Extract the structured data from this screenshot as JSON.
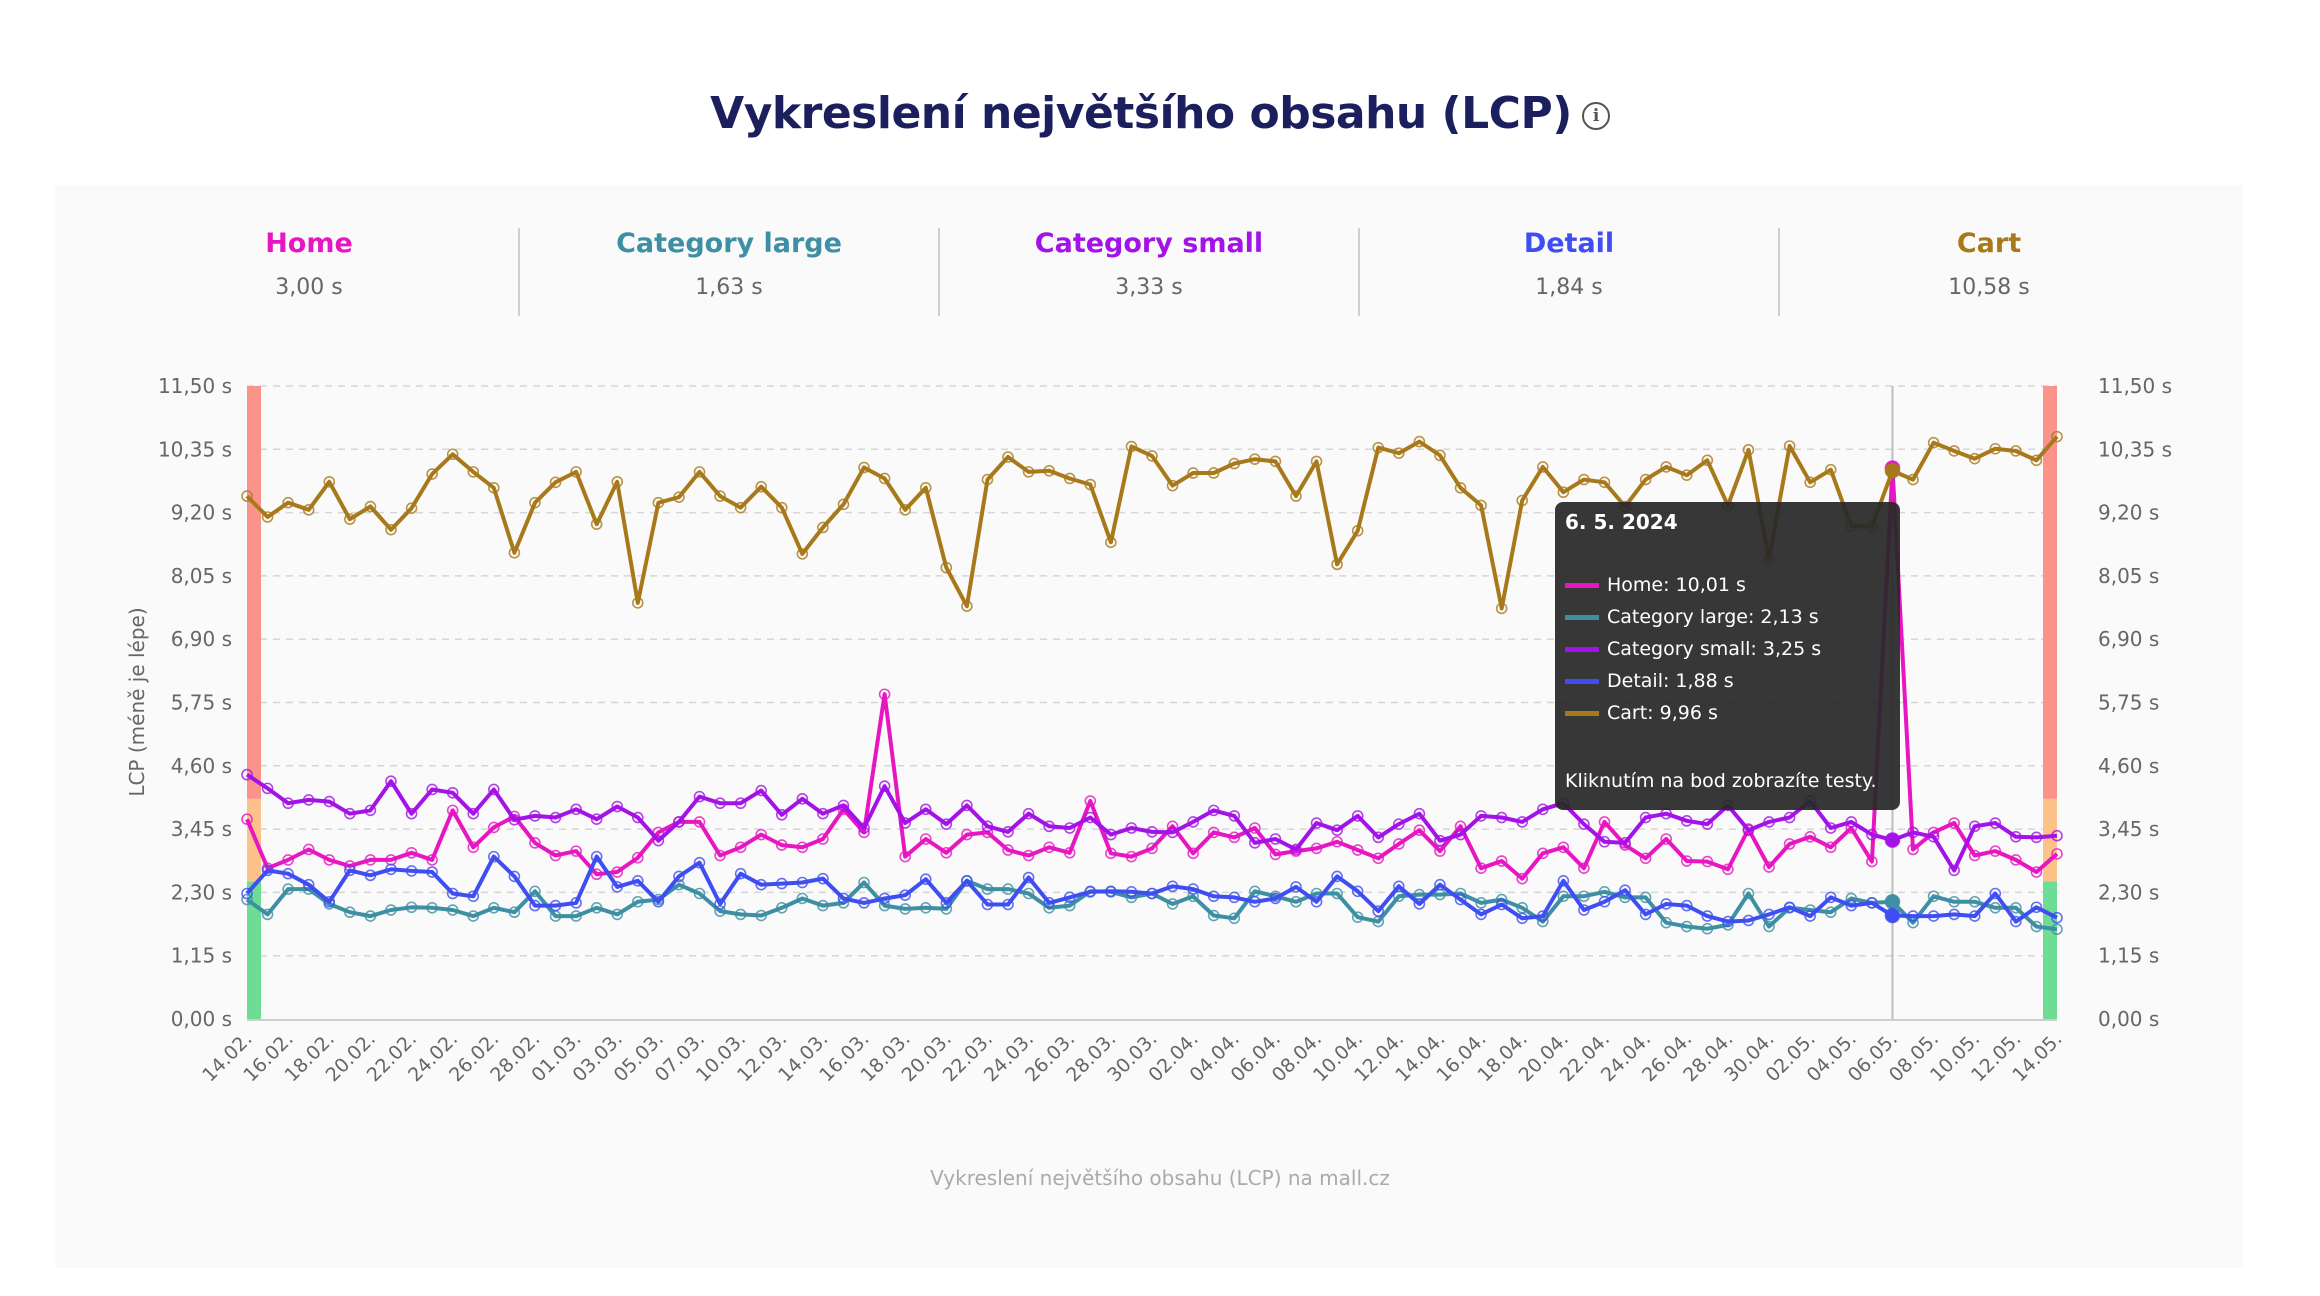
{
  "title": "Vykreslení největšího obsahu (LCP)",
  "title_icon": "info-circle-icon",
  "summary": [
    {
      "name": "Home",
      "value": "3,00 s",
      "color": "#e617c2"
    },
    {
      "name": "Category large",
      "value": "1,63 s",
      "color": "#3d8fa3"
    },
    {
      "name": "Category small",
      "value": "3,33 s",
      "color": "#a312e6"
    },
    {
      "name": "Detail",
      "value": "1,84 s",
      "color": "#3f4ef2"
    },
    {
      "name": "Cart",
      "value": "10,58 s",
      "color": "#a8791b"
    }
  ],
  "tooltip": {
    "date": "6. 5. 2024",
    "rows": [
      "Home: 10,01 s",
      "Category large: 2,13 s",
      "Category small: 3,25 s",
      "Detail: 1,88 s",
      "Cart: 9,96 s"
    ],
    "hint": "Kliknutím na bod zobrazíte testy."
  },
  "footer": "Vykreslení největšího obsahu (LCP) na mall.cz",
  "chart_data": {
    "type": "line",
    "title": "Vykreslení největšího obsahu (LCP)",
    "ylabel": "LCP (méně je lépe)",
    "xlabel": "",
    "ylim": [
      0,
      11.5
    ],
    "y_ticks": [
      "0,00 s",
      "1,15 s",
      "2,30 s",
      "3,45 s",
      "4,60 s",
      "5,75 s",
      "6,90 s",
      "8,05 s",
      "9,20 s",
      "10,35 s",
      "11,50 s"
    ],
    "grid": true,
    "threshold_bands": [
      {
        "from": 0,
        "to": 2.5,
        "color": "#6ddc94"
      },
      {
        "from": 2.5,
        "to": 4.0,
        "color": "#fcc289"
      },
      {
        "from": 4.0,
        "to": 11.5,
        "color": "#fb938a"
      }
    ],
    "x": [
      "14.02.",
      "15.02.",
      "16.02.",
      "17.02.",
      "18.02.",
      "19.02.",
      "20.02.",
      "21.02.",
      "22.02.",
      "23.02.",
      "24.02.",
      "25.02.",
      "26.02.",
      "27.02.",
      "28.02.",
      "29.02.",
      "01.03.",
      "02.03.",
      "03.03.",
      "04.03.",
      "05.03.",
      "06.03.",
      "07.03.",
      "08.03.",
      "10.03.",
      "11.03.",
      "12.03.",
      "13.03.",
      "14.03.",
      "15.03.",
      "16.03.",
      "17.03.",
      "18.03.",
      "19.03.",
      "20.03.",
      "21.03.",
      "22.03.",
      "23.03.",
      "24.03.",
      "25.03.",
      "26.03.",
      "27.03.",
      "28.03.",
      "29.03.",
      "30.03.",
      "31.03.",
      "02.04.",
      "03.04.",
      "04.04.",
      "05.04.",
      "06.04.",
      "07.04.",
      "08.04.",
      "09.04.",
      "10.04.",
      "11.04.",
      "12.04.",
      "13.04.",
      "14.04.",
      "15.04.",
      "16.04.",
      "17.04.",
      "18.04.",
      "19.04.",
      "20.04.",
      "21.04.",
      "22.04.",
      "23.04.",
      "24.04.",
      "25.04.",
      "26.04.",
      "27.04.",
      "28.04.",
      "29.04.",
      "30.04.",
      "01.05.",
      "02.05.",
      "03.05.",
      "04.05.",
      "05.05.",
      "06.05.",
      "07.05.",
      "08.05.",
      "09.05.",
      "10.05.",
      "11.05.",
      "12.05.",
      "13.05.",
      "14.05."
    ],
    "x_tick_labels": [
      "14.02.",
      "16.02.",
      "18.02.",
      "20.02.",
      "22.02.",
      "24.02.",
      "26.02.",
      "28.02.",
      "01.03.",
      "03.03.",
      "05.03.",
      "07.03.",
      "10.03.",
      "12.03.",
      "14.03.",
      "16.03.",
      "18.03.",
      "20.03.",
      "22.03.",
      "24.03.",
      "26.03.",
      "28.03.",
      "30.03.",
      "02.04.",
      "04.04.",
      "06.04.",
      "08.04.",
      "10.04.",
      "12.04.",
      "14.04.",
      "16.04.",
      "18.04.",
      "20.04.",
      "22.04.",
      "24.04.",
      "26.04.",
      "28.04.",
      "30.04.",
      "02.05.",
      "04.05.",
      "06.05.",
      "08.05.",
      "10.05.",
      "12.05.",
      "14.05."
    ],
    "highlighted_x": "06.05.",
    "series": [
      {
        "name": "Home",
        "color": "#e617c2",
        "values": [
          3.63,
          2.74,
          2.89,
          3.08,
          2.89,
          2.78,
          2.89,
          2.89,
          3.02,
          2.89,
          3.79,
          3.12,
          3.48,
          3.68,
          3.2,
          2.97,
          3.05,
          2.63,
          2.67,
          2.93,
          3.39,
          3.58,
          3.58,
          2.97,
          3.12,
          3.35,
          3.16,
          3.12,
          3.27,
          3.81,
          3.39,
          5.9,
          2.95,
          3.27,
          3.02,
          3.35,
          3.39,
          3.07,
          2.97,
          3.12,
          3.02,
          3.96,
          3.01,
          2.95,
          3.1,
          3.5,
          3.01,
          3.39,
          3.3,
          3.47,
          2.99,
          3.05,
          3.1,
          3.22,
          3.07,
          2.92,
          3.18,
          3.43,
          3.05,
          3.5,
          2.74,
          2.87,
          2.55,
          3.01,
          3.12,
          2.74,
          3.58,
          3.16,
          2.92,
          3.27,
          2.87,
          2.86,
          2.72,
          3.45,
          2.76,
          3.18,
          3.31,
          3.12,
          3.47,
          2.86,
          10.01,
          3.08,
          3.39,
          3.56,
          2.97,
          3.05,
          2.89,
          2.67,
          3.0
        ]
      },
      {
        "name": "Category large",
        "color": "#3d8fa3",
        "values": [
          2.17,
          1.9,
          2.36,
          2.36,
          2.09,
          1.94,
          1.87,
          1.98,
          2.03,
          2.02,
          1.98,
          1.87,
          2.02,
          1.94,
          2.32,
          1.87,
          1.87,
          2.02,
          1.9,
          2.13,
          2.17,
          2.44,
          2.28,
          1.96,
          1.9,
          1.88,
          2.02,
          2.19,
          2.06,
          2.11,
          2.48,
          2.06,
          2.0,
          2.02,
          2.0,
          2.51,
          2.36,
          2.36,
          2.28,
          2.02,
          2.06,
          2.32,
          2.31,
          2.21,
          2.28,
          2.09,
          2.23,
          1.88,
          1.83,
          2.32,
          2.23,
          2.13,
          2.28,
          2.28,
          1.85,
          1.77,
          2.23,
          2.26,
          2.26,
          2.28,
          2.11,
          2.17,
          2.02,
          1.77,
          2.23,
          2.23,
          2.31,
          2.21,
          2.21,
          1.75,
          1.68,
          1.64,
          1.71,
          2.28,
          1.68,
          2.02,
          1.98,
          1.94,
          2.19,
          2.11,
          2.13,
          1.75,
          2.23,
          2.13,
          2.13,
          2.02,
          2.02,
          1.68,
          1.63
        ]
      },
      {
        "name": "Category small",
        "color": "#a312e6",
        "values": [
          4.44,
          4.19,
          3.92,
          3.98,
          3.95,
          3.73,
          3.79,
          4.32,
          3.73,
          4.17,
          4.11,
          3.73,
          4.17,
          3.62,
          3.69,
          3.66,
          3.81,
          3.63,
          3.86,
          3.66,
          3.24,
          3.58,
          4.04,
          3.92,
          3.92,
          4.15,
          3.71,
          4.0,
          3.73,
          3.88,
          3.47,
          4.23,
          3.56,
          3.81,
          3.54,
          3.88,
          3.5,
          3.4,
          3.73,
          3.5,
          3.47,
          3.66,
          3.35,
          3.47,
          3.4,
          3.39,
          3.58,
          3.79,
          3.69,
          3.2,
          3.27,
          3.08,
          3.56,
          3.43,
          3.69,
          3.3,
          3.54,
          3.73,
          3.24,
          3.35,
          3.69,
          3.66,
          3.58,
          3.81,
          3.92,
          3.54,
          3.22,
          3.2,
          3.66,
          3.73,
          3.6,
          3.54,
          3.88,
          3.43,
          3.58,
          3.66,
          3.96,
          3.47,
          3.58,
          3.35,
          3.25,
          3.39,
          3.31,
          2.7,
          3.5,
          3.56,
          3.31,
          3.3,
          3.33
        ]
      },
      {
        "name": "Detail",
        "color": "#3f4ef2",
        "values": [
          2.28,
          2.7,
          2.64,
          2.44,
          2.13,
          2.7,
          2.61,
          2.72,
          2.69,
          2.67,
          2.28,
          2.23,
          2.95,
          2.59,
          2.06,
          2.06,
          2.11,
          2.95,
          2.4,
          2.51,
          2.13,
          2.59,
          2.84,
          2.09,
          2.64,
          2.44,
          2.46,
          2.48,
          2.55,
          2.19,
          2.11,
          2.19,
          2.25,
          2.54,
          2.11,
          2.51,
          2.08,
          2.08,
          2.57,
          2.11,
          2.21,
          2.31,
          2.32,
          2.31,
          2.28,
          2.41,
          2.36,
          2.23,
          2.21,
          2.13,
          2.19,
          2.4,
          2.13,
          2.59,
          2.32,
          1.96,
          2.41,
          2.09,
          2.44,
          2.17,
          1.9,
          2.08,
          1.83,
          1.87,
          2.51,
          1.98,
          2.13,
          2.34,
          1.9,
          2.09,
          2.06,
          1.87,
          1.77,
          1.79,
          1.9,
          2.03,
          1.87,
          2.21,
          2.06,
          2.11,
          1.88,
          1.87,
          1.87,
          1.9,
          1.87,
          2.28,
          1.77,
          2.03,
          1.84
        ]
      },
      {
        "name": "Cart",
        "color": "#a8791b",
        "values": [
          9.5,
          9.12,
          9.38,
          9.25,
          9.76,
          9.08,
          9.31,
          8.89,
          9.28,
          9.9,
          10.26,
          9.94,
          9.65,
          8.47,
          9.38,
          9.75,
          9.94,
          8.99,
          9.76,
          7.56,
          9.38,
          9.48,
          9.94,
          9.5,
          9.29,
          9.67,
          9.29,
          8.45,
          8.93,
          9.35,
          10.02,
          9.82,
          9.25,
          9.65,
          8.2,
          7.5,
          9.8,
          10.21,
          9.94,
          9.96,
          9.82,
          9.71,
          8.66,
          10.4,
          10.23,
          9.69,
          9.92,
          9.92,
          10.09,
          10.17,
          10.13,
          9.5,
          10.13,
          8.26,
          8.87,
          10.38,
          10.28,
          10.49,
          10.24,
          9.65,
          9.33,
          7.46,
          9.42,
          10.03,
          9.57,
          9.8,
          9.75,
          9.31,
          9.8,
          10.03,
          9.88,
          10.15,
          9.33,
          10.34,
          8.35,
          10.41,
          9.75,
          9.98,
          8.95,
          8.95,
          9.96,
          9.8,
          10.47,
          10.32,
          10.18,
          10.36,
          10.32,
          10.15,
          10.58
        ]
      }
    ]
  }
}
